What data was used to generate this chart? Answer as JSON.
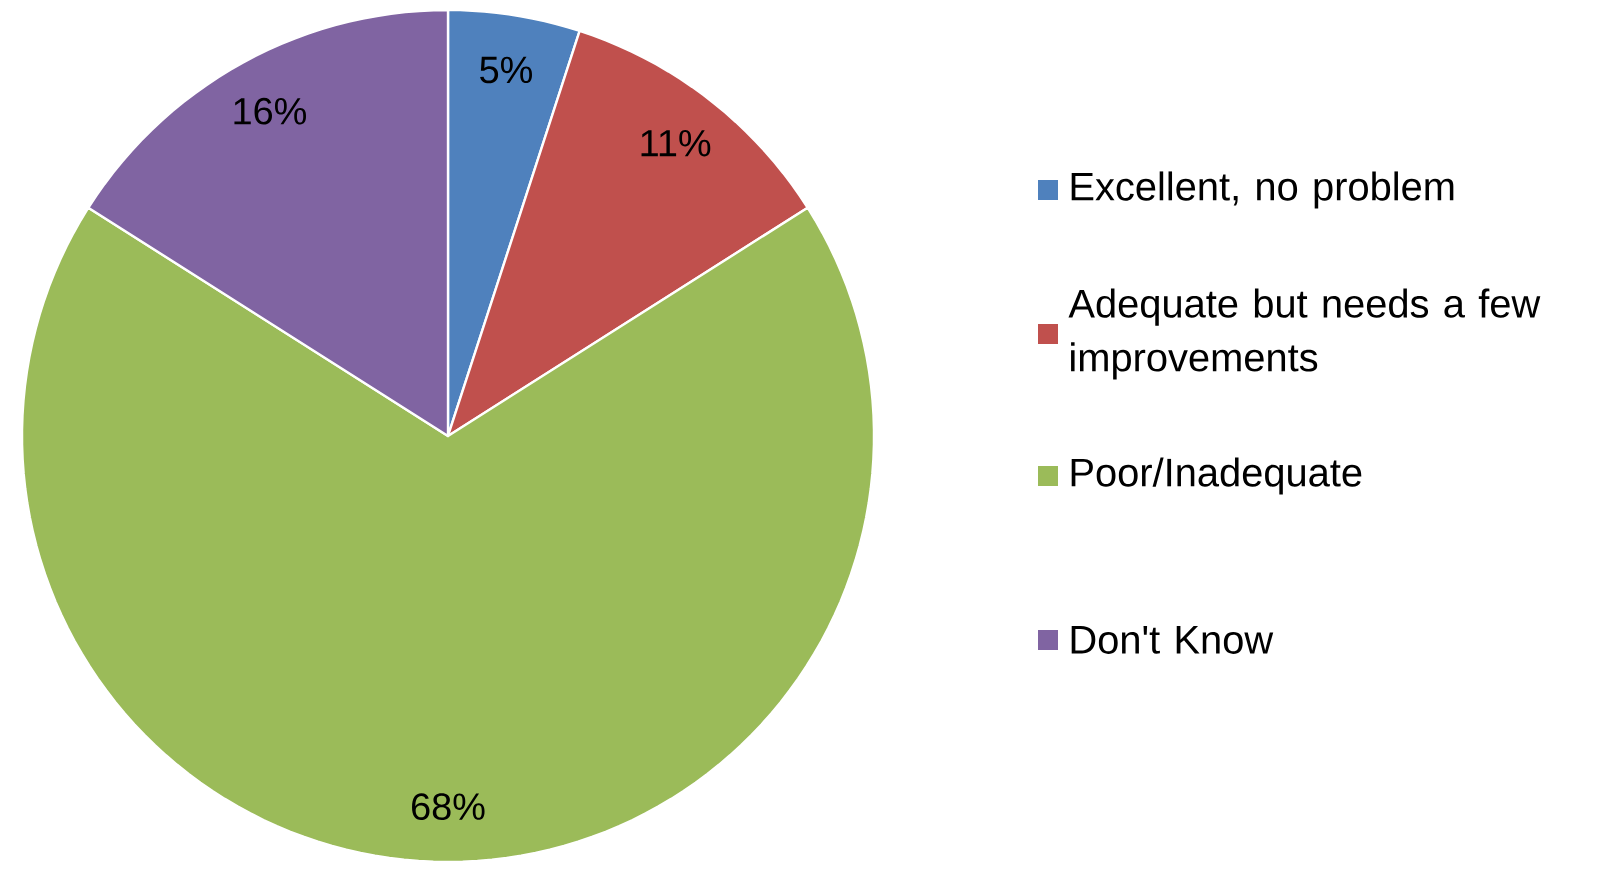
{
  "chart_data": {
    "type": "pie",
    "categories": [
      "Excellent, no problem",
      "Adequate but needs a few improvements",
      "Poor/Inadequate",
      "Don't Know"
    ],
    "values": [
      5,
      11,
      68,
      16
    ],
    "colors": [
      "#4f81bd",
      "#c0504d",
      "#9bbb59",
      "#8064a2"
    ],
    "value_labels": [
      "5%",
      "11%",
      "68%",
      "16%"
    ],
    "legend": "right"
  }
}
